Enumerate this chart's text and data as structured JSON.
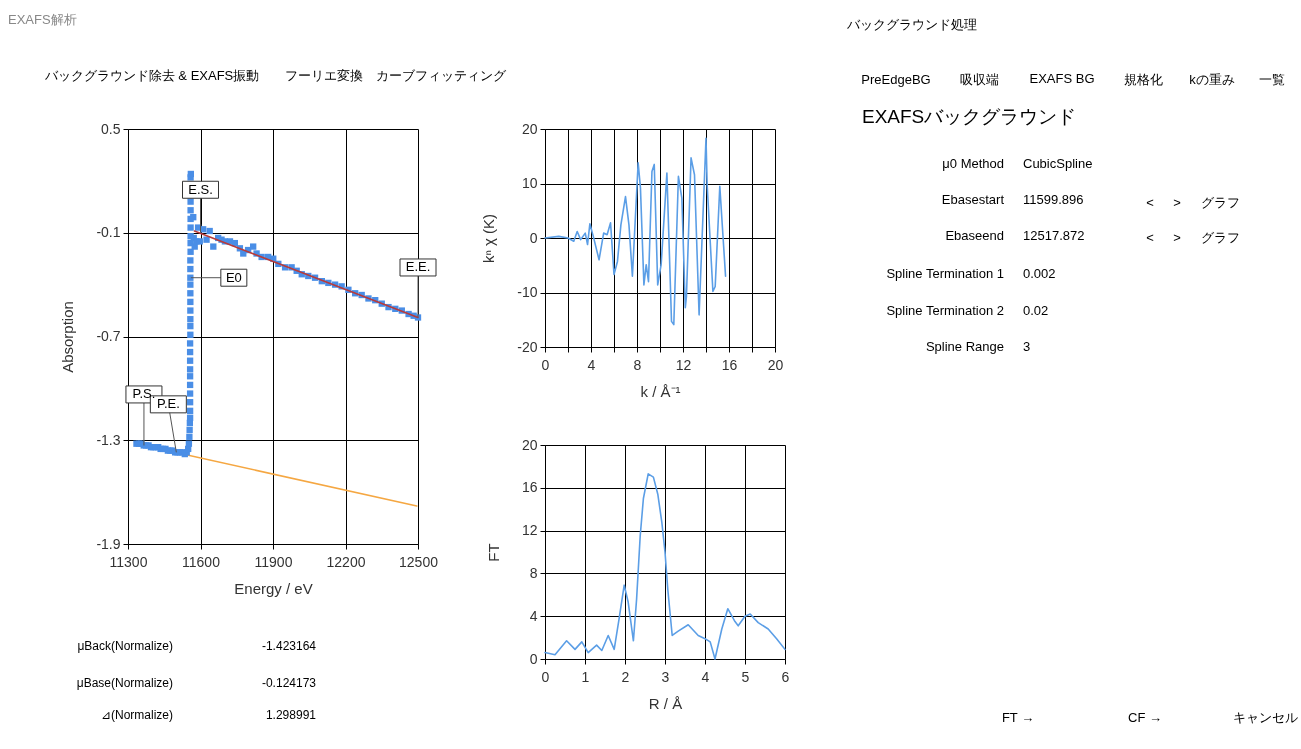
{
  "chart_data": [
    {
      "type": "other",
      "annotations": [
        "EXAFS解析",
        "バックグラウンド除去 & EXAFS振動",
        "フーリエ変換",
        "カーブフィッティング"
      ]
    },
    {
      "type": "scatter",
      "xlabel": "Energy / eV",
      "ylabel": "Absorption",
      "xlim": [
        11300,
        12500
      ],
      "ylim": [
        -1.9,
        0.5
      ],
      "xticks": [
        11300,
        11600,
        11900,
        12200,
        12500
      ],
      "yticks": [
        -1.9,
        -1.3,
        -0.7,
        -0.1,
        0.5
      ],
      "grid": true,
      "series": [
        {
          "type": "line",
          "color": "#f5a742",
          "x": [
            11335,
            12495
          ],
          "values": [
            -1.32,
            -1.68
          ]
        },
        {
          "color": "#4a8ee6",
          "marker": "square",
          "x": [
            11335,
            11345,
            11355,
            11365,
            11375,
            11385,
            11395,
            11405,
            11415,
            11425,
            11435,
            11445,
            11455,
            11465,
            11475,
            11485,
            11495,
            11505,
            11515,
            11525,
            11535,
            11543,
            11549,
            11552,
            11554,
            11555,
            11556,
            11557,
            11557,
            11557,
            11557,
            11557,
            11557,
            11557,
            11557,
            11557,
            11557,
            11558,
            11558,
            11558,
            11558,
            11558,
            11558,
            11558,
            11558,
            11558,
            11558,
            11559,
            11559,
            11559,
            11559,
            11559,
            11559,
            11559,
            11559,
            11560,
            11570,
            11572,
            11576,
            11583,
            11590,
            11597,
            11611,
            11625,
            11638,
            11653,
            11673,
            11687,
            11701,
            11722,
            11742,
            11763,
            11777,
            11797,
            11818,
            11832,
            11853,
            11880,
            11901,
            11922,
            11950,
            11977,
            11998,
            12019,
            12046,
            12074,
            12102,
            12129,
            12157,
            12184,
            12212,
            12240,
            12267,
            12295,
            12323,
            12350,
            12378,
            12406,
            12433,
            12461,
            12482,
            12500
          ],
          "values": [
            -1.32,
            -1.32,
            -1.32,
            -1.33,
            -1.33,
            -1.33,
            -1.34,
            -1.34,
            -1.34,
            -1.34,
            -1.35,
            -1.35,
            -1.35,
            -1.36,
            -1.36,
            -1.36,
            -1.37,
            -1.37,
            -1.37,
            -1.37,
            -1.38,
            -1.37,
            -1.35,
            -1.32,
            -1.28,
            -1.24,
            -1.2,
            -1.17,
            -1.13,
            -1.08,
            -1.03,
            -0.98,
            -0.93,
            -0.89,
            -0.84,
            -0.79,
            -0.74,
            -0.69,
            -0.64,
            -0.6,
            -0.55,
            -0.5,
            -0.45,
            -0.4,
            -0.36,
            -0.31,
            -0.26,
            -0.21,
            -0.16,
            -0.12,
            -0.07,
            -0.02,
            0.03,
            0.08,
            0.22,
            0.24,
            -0.01,
            -0.13,
            -0.18,
            -0.15,
            -0.07,
            -0.15,
            -0.08,
            -0.14,
            -0.09,
            -0.18,
            -0.13,
            -0.14,
            -0.15,
            -0.15,
            -0.16,
            -0.19,
            -0.22,
            -0.2,
            -0.18,
            -0.22,
            -0.24,
            -0.24,
            -0.25,
            -0.28,
            -0.3,
            -0.3,
            -0.32,
            -0.34,
            -0.35,
            -0.36,
            -0.38,
            -0.39,
            -0.4,
            -0.41,
            -0.43,
            -0.45,
            -0.46,
            -0.48,
            -0.49,
            -0.51,
            -0.53,
            -0.54,
            -0.55,
            -0.57,
            -0.58,
            -0.59
          ]
        },
        {
          "type": "line",
          "color": "#b83a3a",
          "x": [
            11575,
            12000,
            12500
          ],
          "values": [
            -0.09,
            -0.32,
            -0.59
          ]
        }
      ],
      "annotations": [
        {
          "text": "E.S.",
          "x": 11600,
          "y": -0.1
        },
        {
          "text": "E0",
          "x": 11560,
          "y": -0.36
        },
        {
          "text": "E.E.",
          "x": 12500,
          "y": -0.59
        },
        {
          "text": "P.S.",
          "x": 11366,
          "y": -1.33
        },
        {
          "text": "P.E.",
          "x": 11500,
          "y": -1.37
        }
      ]
    },
    {
      "type": "line",
      "xlabel": "k / Å⁻¹",
      "ylabel": "kⁿ χ (K)",
      "xlim": [
        0,
        20
      ],
      "ylim": [
        -20,
        20
      ],
      "xticks": [
        0,
        {
          "value": 2,
          "label": null
        },
        4,
        {
          "value": 6,
          "label": null
        },
        8,
        {
          "value": 10,
          "label": null
        },
        12,
        {
          "value": 14,
          "label": null
        },
        16,
        {
          "value": 18,
          "label": null
        },
        20
      ],
      "yticks": [
        -20,
        -10,
        0,
        10,
        20
      ],
      "grid": true,
      "color": "#5b9ee6",
      "x": [
        0,
        1.2,
        2,
        2.5,
        2.8,
        3.1,
        3.5,
        3.7,
        3.9,
        4.2,
        4.7,
        5.1,
        5.4,
        5.7,
        6.0,
        6.3,
        6.6,
        7.0,
        7.3,
        7.6,
        8.1,
        8.3,
        8.6,
        8.8,
        9.0,
        9.3,
        9.5,
        9.8,
        10.1,
        10.6,
        11.0,
        11.2,
        11.6,
        11.9,
        12.2,
        12.3,
        12.7,
        13.0,
        13.4,
        14.0,
        14.1,
        14.6,
        14.8,
        15.2,
        15.7
      ],
      "values": [
        0,
        0.3,
        0,
        -0.6,
        1.2,
        -0.3,
        0.9,
        -1.2,
        2.6,
        0.3,
        -4.0,
        0.9,
        0.6,
        2.8,
        -6.7,
        -4.3,
        2.4,
        7.6,
        2.4,
        -7.0,
        13.8,
        9.2,
        -8.6,
        -4.9,
        -8.0,
        12.2,
        13.5,
        -8.6,
        -4.9,
        11.9,
        -15.3,
        -15.9,
        11.3,
        7.3,
        -12.8,
        -10.7,
        14.7,
        11.6,
        -14.1,
        18.3,
        9.8,
        -9.8,
        -8.9,
        9.5,
        -7.0
      ]
    },
    {
      "type": "line",
      "xlabel": "R / Å",
      "ylabel": "FT",
      "xlim": [
        0,
        6
      ],
      "ylim": [
        0,
        20
      ],
      "xticks": [
        0,
        1,
        2,
        3,
        4,
        5,
        6
      ],
      "yticks": [
        0,
        4,
        8,
        12,
        16,
        20
      ],
      "grid": true,
      "color": "#5b9ee6",
      "x": [
        0,
        0.25,
        0.54,
        0.75,
        0.92,
        1.08,
        1.29,
        1.42,
        1.58,
        1.73,
        1.85,
        1.98,
        2.08,
        2.21,
        2.29,
        2.38,
        2.46,
        2.58,
        2.71,
        2.82,
        2.92,
        3.0,
        3.07,
        3.18,
        3.33,
        3.58,
        3.83,
        4.0,
        4.13,
        4.25,
        4.42,
        4.57,
        4.75,
        4.83,
        5.0,
        5.13,
        5.33,
        5.58,
        5.79,
        6.0
      ],
      "values": [
        0.6,
        0.4,
        1.7,
        0.9,
        1.6,
        0.6,
        1.3,
        0.8,
        2.2,
        0.9,
        3.7,
        6.9,
        5.3,
        1.7,
        5.6,
        11.5,
        15.0,
        17.3,
        17.0,
        15.4,
        12.8,
        10.0,
        6.5,
        2.2,
        2.6,
        3.2,
        2.2,
        1.9,
        1.6,
        0.0,
        2.8,
        4.7,
        3.5,
        3.1,
        4.0,
        4.2,
        3.4,
        2.8,
        1.9,
        0.9
      ]
    },
    {
      "type": "other",
      "annotations": [
        "μBack(Normalize)",
        "-1.423164",
        "μBase(Normalize)",
        "-0.124173",
        "⊿(Normalize)",
        "1.298991"
      ]
    },
    {
      "type": "other",
      "annotations": [
        "バックグラウンド処理",
        "PreEdgeBG",
        "吸収端",
        "EXAFS BG",
        "規格化",
        "kの重み",
        "一覧",
        "EXAFSバックグラウンド",
        "μ0 Method",
        "CubicSpline",
        "Ebasestart",
        "11599.896",
        "<",
        ">",
        "グラフ",
        "Ebaseend",
        "12517.872",
        "<",
        ">",
        "グラフ",
        "Spline Termination 1",
        "0.002",
        "Spline Termination 2",
        "0.02",
        "Spline Range",
        "3",
        "FT →",
        "CF →",
        "キャンセル"
      ]
    }
  ]
}
